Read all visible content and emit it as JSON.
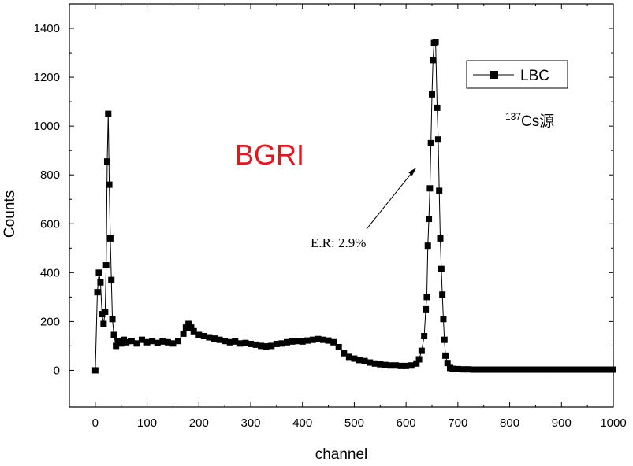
{
  "chart_data": {
    "type": "line",
    "xlabel": "channel",
    "ylabel": "Counts",
    "xlim": [
      -50,
      1000
    ],
    "ylim": [
      -150,
      1500
    ],
    "xticks": [
      0,
      100,
      200,
      300,
      400,
      500,
      600,
      700,
      800,
      900,
      1000
    ],
    "yticks": [
      0,
      200,
      400,
      600,
      800,
      1000,
      1200,
      1400
    ],
    "legend": "upper right",
    "annotations": [
      {
        "text": "BGRI",
        "color": "#e8141b"
      },
      {
        "text": "E.R: 2.9%",
        "color": "#000000"
      }
    ],
    "source_label": {
      "superscript": "137",
      "text": "Cs源"
    },
    "x": [
      0,
      4,
      7,
      10,
      13,
      16,
      19,
      21,
      23,
      25,
      27,
      29,
      31,
      33,
      36,
      40,
      44,
      50,
      55,
      60,
      70,
      80,
      90,
      100,
      110,
      120,
      130,
      140,
      150,
      160,
      170,
      175,
      180,
      185,
      190,
      200,
      210,
      220,
      230,
      240,
      250,
      260,
      270,
      280,
      290,
      300,
      310,
      320,
      330,
      340,
      350,
      360,
      370,
      380,
      390,
      400,
      410,
      420,
      430,
      440,
      450,
      460,
      470,
      480,
      490,
      500,
      510,
      520,
      530,
      540,
      550,
      560,
      570,
      580,
      590,
      600,
      610,
      620,
      625,
      630,
      635,
      638,
      640,
      642,
      644,
      646,
      648,
      650,
      652,
      654,
      657,
      660,
      662,
      664,
      666,
      668,
      670,
      672,
      674,
      676,
      680,
      685,
      690,
      700,
      710,
      720,
      730,
      740,
      750,
      760,
      770,
      780,
      790,
      800,
      810,
      820,
      830,
      840,
      850,
      860,
      870,
      880,
      890,
      900,
      910,
      920,
      930,
      940,
      950,
      960,
      970,
      980,
      990,
      1000
    ],
    "series": [
      {
        "name": "LBC",
        "color": "#000000",
        "values": [
          0,
          320,
          400,
          360,
          230,
          190,
          240,
          430,
          855,
          1050,
          760,
          540,
          370,
          210,
          145,
          100,
          120,
          110,
          125,
          115,
          120,
          110,
          125,
          115,
          120,
          112,
          118,
          115,
          110,
          120,
          150,
          175,
          190,
          175,
          160,
          145,
          140,
          135,
          130,
          125,
          120,
          115,
          118,
          110,
          112,
          108,
          105,
          100,
          98,
          100,
          108,
          110,
          115,
          118,
          120,
          118,
          122,
          125,
          128,
          125,
          122,
          115,
          95,
          70,
          55,
          48,
          42,
          38,
          32,
          28,
          25,
          22,
          20,
          20,
          18,
          18,
          20,
          28,
          45,
          80,
          140,
          250,
          300,
          510,
          620,
          745,
          930,
          1130,
          1270,
          1340,
          1345,
          1075,
          945,
          735,
          540,
          415,
          310,
          210,
          125,
          60,
          30,
          10,
          6,
          5,
          4,
          4,
          3,
          3,
          3,
          3,
          3,
          3,
          3,
          3,
          3,
          3,
          3,
          3,
          3,
          3,
          3,
          3,
          3,
          3,
          3,
          3,
          3,
          3,
          3,
          3,
          3,
          3,
          3,
          3
        ]
      }
    ]
  }
}
